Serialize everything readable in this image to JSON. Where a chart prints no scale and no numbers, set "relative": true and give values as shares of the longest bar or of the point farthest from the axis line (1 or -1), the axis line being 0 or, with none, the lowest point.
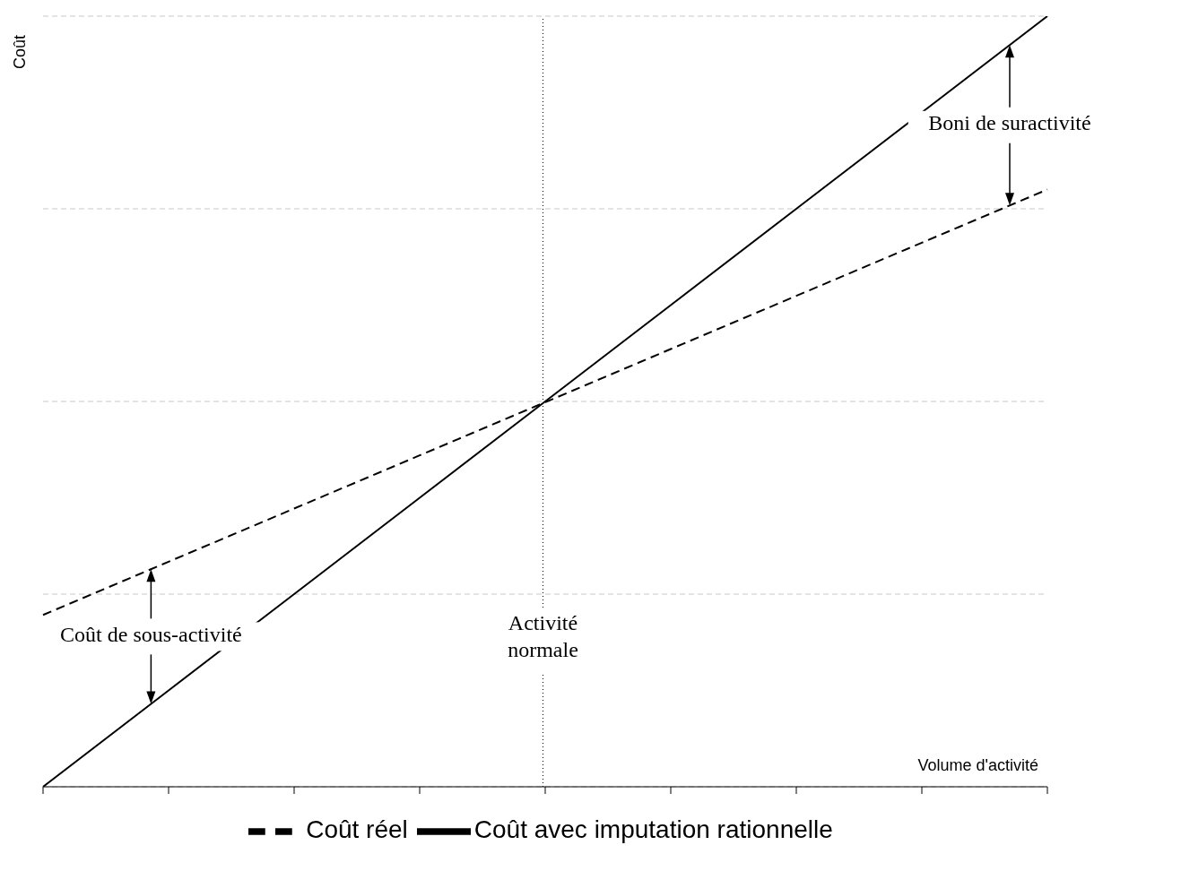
{
  "chart_data": {
    "type": "line",
    "relative": true,
    "xlabel": "Volume d'activité",
    "ylabel": "Coût",
    "categories": [
      null,
      null,
      null,
      null,
      null,
      null,
      null,
      null,
      null
    ],
    "series": [
      {
        "name": "Coût réel",
        "color": "#000000",
        "line_style": "dashed",
        "values": [
          0.223,
          0.292,
          0.361,
          0.43,
          0.499,
          0.568,
          0.637,
          0.706,
          0.775
        ]
      },
      {
        "name": "Coût avec imputation rationnelle",
        "color": "#000000",
        "line_style": "solid",
        "values": [
          0,
          0.125,
          0.25,
          0.375,
          0.5,
          0.625,
          0.75,
          0.875,
          1
        ]
      }
    ],
    "ref_lines": [
      {
        "axis": "x",
        "label": "Activité normale",
        "line_style": "dotted",
        "color": "#000000"
      }
    ],
    "annotations": [
      "Coût de sous-activité",
      "Boni de suractivité"
    ],
    "grid": "y",
    "legend": "bottom",
    "marker": "none"
  }
}
